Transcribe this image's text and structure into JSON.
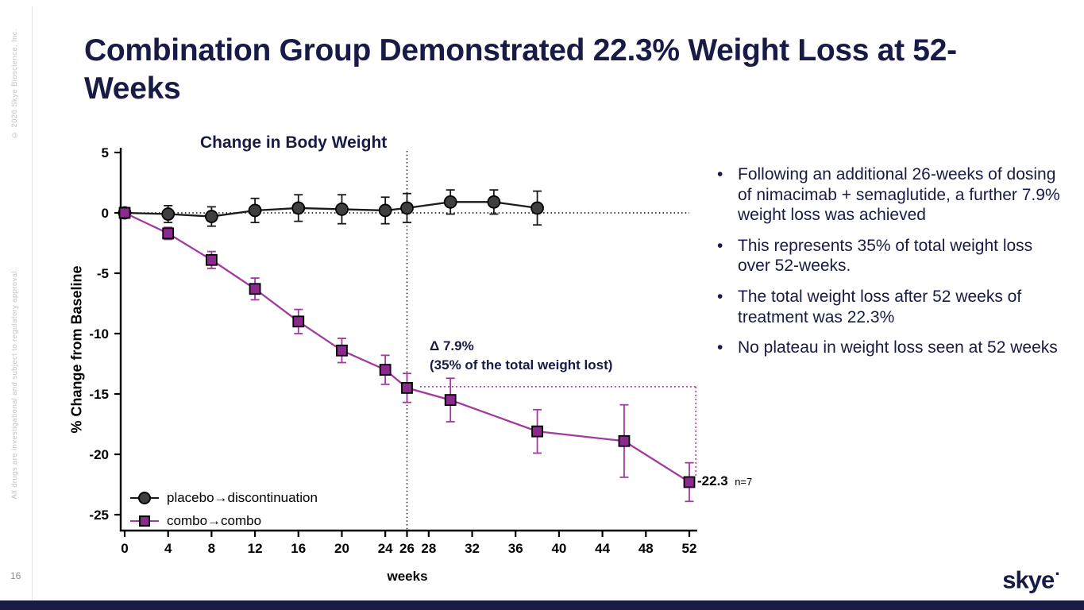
{
  "header": {
    "title": "Combination Group Demonstrated 22.3% Weight Loss at 52-Weeks"
  },
  "sidebar": {
    "copyright": "© 2026 Skye Bioscience, Inc.",
    "disclaimer": "All drugs are investigational and subject to regulatory approval.",
    "page_number": "16"
  },
  "footer": {
    "logo_text": "skye",
    "logo_dot": "·"
  },
  "bullets": [
    "Following an additional 26-weeks of dosing of nimacimab + semaglutide, a further 7.9% weight loss was achieved",
    "This represents 35% of total weight loss over 52-weeks.",
    "The total weight loss after 52 weeks of treatment was 22.3%",
    "No plateau in weight loss seen at 52 weeks"
  ],
  "colors": {
    "navy": "#171b45",
    "placebo_line": "#1a1a1a",
    "placebo_fill": "#3f3f3f",
    "combo_line": "#a13a9f",
    "combo_fill": "#8b2a8d"
  },
  "chart_data": {
    "type": "line",
    "title": "Change in Body Weight",
    "xlabel": "weeks",
    "ylabel": "% Change from Baseline",
    "xlim": [
      0,
      52
    ],
    "ylim": [
      -25,
      5
    ],
    "x_ticks": [
      0,
      4,
      8,
      12,
      16,
      20,
      24,
      26,
      28,
      32,
      36,
      40,
      44,
      48,
      52
    ],
    "y_ticks": [
      5,
      0,
      -5,
      -10,
      -15,
      -20,
      -25
    ],
    "grid": false,
    "legend_position": "inside-bottom-left",
    "series": [
      {
        "name": "placebo→discontinuation",
        "marker": "circle",
        "line_color": "#1a1a1a",
        "marker_fill": "#3f3f3f",
        "x": [
          0,
          4,
          8,
          12,
          16,
          20,
          24,
          26,
          30,
          34,
          38
        ],
        "y": [
          0,
          -0.1,
          -0.3,
          0.2,
          0.4,
          0.3,
          0.2,
          0.4,
          0.9,
          0.9,
          0.4
        ],
        "err": [
          0.3,
          0.7,
          0.8,
          1.0,
          1.1,
          1.2,
          1.1,
          1.2,
          1.0,
          1.0,
          1.4
        ]
      },
      {
        "name": "combo→combo",
        "marker": "square",
        "line_color": "#a13a9f",
        "marker_fill": "#8b2a8d",
        "x": [
          0,
          4,
          8,
          12,
          16,
          20,
          24,
          26,
          30,
          38,
          46,
          52
        ],
        "y": [
          0,
          -1.7,
          -3.9,
          -6.3,
          -9.0,
          -11.4,
          -13.0,
          -14.5,
          -15.5,
          -18.1,
          -18.9,
          -22.3
        ],
        "err": [
          0.2,
          0.5,
          0.7,
          0.9,
          1.0,
          1.0,
          1.2,
          1.2,
          1.8,
          1.8,
          3.0,
          1.6
        ]
      }
    ],
    "annotations": {
      "delta_label": "Δ 7.9%",
      "delta_sub": "(35% of the total weight lost)",
      "end_value_label": "-22.3",
      "end_n_label": "n=7",
      "reference_vline_week": 26,
      "zero_reference_value": 0,
      "bracket": {
        "from_week": 27.2,
        "to_week": 52.6,
        "top_value": -14.4,
        "bottom_value": -21.8
      }
    }
  }
}
